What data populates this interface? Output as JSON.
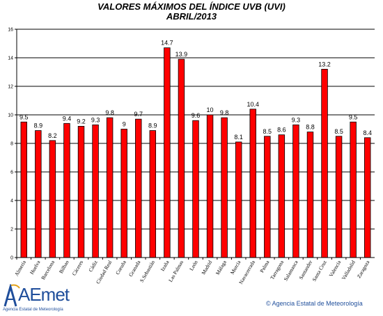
{
  "chart_data": {
    "type": "bar",
    "title": "VALORES MÁXIMOS DEL ÍNDICE UVB (UVI)",
    "subtitle": "ABRIL/2013",
    "categories": [
      "Almería",
      "Huelva",
      "Barcelona",
      "Bilbao",
      "Cáceres",
      "Cádiz",
      "Ciudad Real",
      "Coruña",
      "Granada",
      "S.Sebastián",
      "Izaña",
      "Las Palmas",
      "León",
      "Madrid",
      "Málaga",
      "Murcia",
      "Navacerrada",
      "Palma",
      "Tarragona",
      "Salamanca",
      "Santander",
      "Santa Cruz",
      "Valencia",
      "Valladolid",
      "Zaragoza"
    ],
    "values": [
      9.5,
      8.9,
      8.2,
      9.4,
      9.2,
      9.3,
      9.8,
      9,
      9.7,
      8.9,
      14.7,
      13.9,
      9.6,
      10,
      9.8,
      8.1,
      10.4,
      8.5,
      8.6,
      9.3,
      8.8,
      13.2,
      8.5,
      9.5,
      8.4
    ],
    "value_labels": [
      "9.5",
      "8.9",
      "8.2",
      "9.4",
      "9.2",
      "9.3",
      "9.8",
      "9",
      "9.7",
      "8.9",
      "14.7",
      "13.9",
      "9.6",
      "10",
      "9.8",
      "8.1",
      "10.4",
      "8.5",
      "8.6",
      "9.3",
      "8.8",
      "13.2",
      "8.5",
      "9.5",
      "8.4"
    ],
    "yticks": [
      "0",
      "2",
      "4",
      "6",
      "8",
      "10",
      "12",
      "14",
      "16"
    ],
    "ylim": [
      0,
      16
    ],
    "grid": true,
    "bar_color": "#ff0000",
    "xlabel": "",
    "ylabel": ""
  },
  "footer": {
    "logo_text": "AEmet",
    "logo_subtext": "Agencia Estatal de Meteorología",
    "copyright": "© Agencia Estatal de Meteorología"
  }
}
